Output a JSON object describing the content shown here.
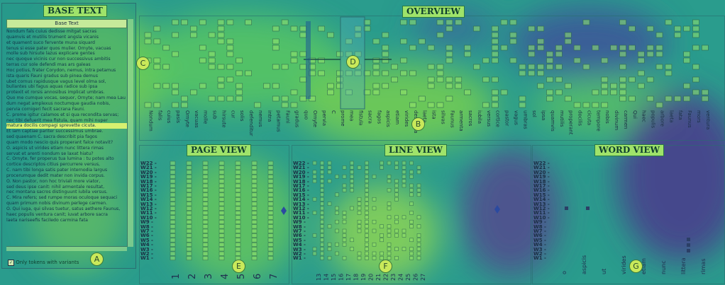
{
  "titles": {
    "base": "BASE TEXT",
    "overview": "OVERVIEW",
    "page_view": "PAGE VIEW",
    "line_view": "LINE VIEW",
    "word_view": "WORD VIEW"
  },
  "base_text": {
    "header": "Base Text",
    "lines": [
      "Nondum fals cuius dedisse mitgat sacras",
      "quamvis et mutilis trument angsla vicanis",
      "et quament suco fervente muna siquard",
      "tenus si esse pater quos mulier. Ornyte, vacuas",
      "molle sub hirsute lazus explicare gentes",
      "nec quoque vicinis cur non successivus ambitis",
      "terras cur sole defendi mas ars galeas",
      "Hoc potius, frater Corydon, nemus, intra petamus",
      "ista quaris Fauni gradus sub pinea demus",
      "ubet cornus rapidusque vagus level olma sol,",
      "bullantes ubi fagus aquas radice sub ipsa",
      "protexit et rorsis annosibus implicat umbras.",
      "Quo me cumque vocas, sequor, Ornyte; nam mea Lau",
      "dum negat amplexus noctumque gaudia nobis,",
      "pervia cornigeri fecit sacrana Fauni.",
      "C. prome igitur calamos et si qua recondita servas;",
      "nec tibi defuerit mea fistula, quam mihi nuper",
      "matura docilis compagi sprevette cicuta.",
      "Et iam captiae pariter successimus umbrae.",
      "sed quaenam C. sacra describit pia fagos",
      "quam modo nescio quis properant falce notavit?",
      "O. aspicis ut virides etiam nunc littera rimas",
      "servat et arenti nondum se laxat hiatu?",
      "C. Ornyte, fer properus tua lumina : tu potes alto",
      "cortice descriptos citius percurrere versus,",
      "C. nam tibi longa satis pater internodia largus",
      "procerumque dedit mater non invida corpus.",
      "O. Non pastor, non hoc triviali more viator,",
      "sed deus ipse canit: nihil armentale resultat,",
      "nec montana sacros distinguunt iubila versus.",
      "C. Mira refers; sed rumpe moras oculoque sequaci",
      "quam primum nobis divinum perlege carmen.",
      "O. Qui iuga, qui silvas tuetur, satus aethere Faunus,",
      "haec populis ventura canit; iuvat arbore sacra",
      "laeta nariseefis faciledo carmina fata"
    ],
    "highlight_line": 17,
    "checkbox_label": "Only tokens with variants"
  },
  "badges": {
    "a": "A",
    "b": "B",
    "c": "C",
    "d": "D",
    "e": "E",
    "f": "F",
    "g": "G"
  },
  "page_view": {
    "pages": [
      "1",
      "2",
      "3",
      "4",
      "5",
      "6",
      "7"
    ],
    "words": [
      "W22",
      "W21",
      "W20",
      "W19",
      "W18",
      "W17",
      "W16",
      "W15",
      "W14",
      "W13",
      "W12",
      "W11",
      "W10",
      "W9",
      "W8",
      "W7",
      "W6",
      "W5",
      "W4",
      "W3",
      "W2",
      "W1"
    ]
  },
  "line_view": {
    "lines": [
      "13",
      "14",
      "15",
      "16",
      "17",
      "18",
      "19",
      "20",
      "21",
      "22",
      "23",
      "24",
      "25",
      "26",
      "27"
    ],
    "words": [
      "W22",
      "W21",
      "W20",
      "W19",
      "W18",
      "W17",
      "W16",
      "W15",
      "W14",
      "W13",
      "W12",
      "W11",
      "W10",
      "W9",
      "W8",
      "W7",
      "W6",
      "W5",
      "W4",
      "W3",
      "W2",
      "W1"
    ]
  },
  "word_view": {
    "words": [
      "W22",
      "W21",
      "W20",
      "W19",
      "W18",
      "W17",
      "W16",
      "W15",
      "W14",
      "W13",
      "W12",
      "W11",
      "W10",
      "W9",
      "W8",
      "W7",
      "W6",
      "W5",
      "W4",
      "W3",
      "W2",
      "W1"
    ],
    "tokens": [
      "o",
      "aspicis",
      "ut",
      "virides",
      "etiam",
      "nunc",
      "littera",
      "rimas"
    ]
  },
  "overview": {
    "tokens": [
      "Nondum",
      "falis",
      "cuius",
      "pasis",
      "Ornyte",
      "vacuas",
      "molle",
      "sub",
      "hirsute",
      "cur",
      "solis",
      "defenditur",
      "nemus",
      "intra",
      "petamus",
      "Fauni",
      "gradus",
      "quo",
      "Ornyte",
      "pervia",
      "C",
      "prome",
      "mea",
      "fistula",
      "sacra",
      "fagos",
      "aspicis",
      "etiam",
      "virides",
      "descripta",
      "laeta",
      "ista",
      "silvas",
      "Faunus",
      "armenta",
      "sacros",
      "iubila",
      "versus",
      "cortice",
      "pastor",
      "vagus",
      "umbras",
      "sol",
      "ipsa",
      "quamvis",
      "mutilis",
      "properant",
      "docilis",
      "cicuta",
      "tempore",
      "nobis",
      "divinum",
      "carmen",
      "Qui",
      "haec",
      "populis",
      "arbore",
      "laeta",
      "fata",
      "Faunus",
      "mors",
      "ventura"
    ]
  }
}
